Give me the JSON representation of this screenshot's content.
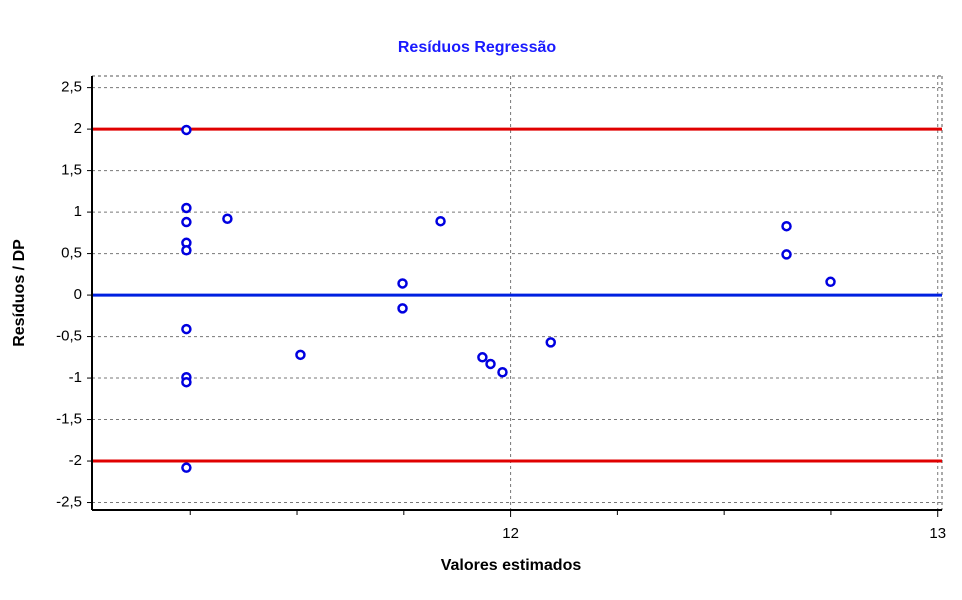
{
  "chart_data": {
    "type": "scatter",
    "title": "Resíduos Regressão",
    "x_label": "Valores estimados",
    "y_label": "Resíduos / DP",
    "x": [
      11.241,
      11.241,
      11.241,
      11.241,
      11.241,
      11.241,
      11.241,
      11.241,
      11.241,
      11.337,
      11.508,
      11.747,
      11.747,
      11.836,
      11.934,
      11.953,
      11.981,
      12.094,
      12.646,
      12.646,
      12.749
    ],
    "values": [
      1.99,
      1.05,
      0.88,
      0.63,
      0.54,
      -0.41,
      -0.99,
      -1.05,
      -2.08,
      0.92,
      -0.72,
      0.14,
      -0.16,
      0.89,
      -0.75,
      -0.83,
      -0.93,
      -0.57,
      0.83,
      0.49,
      0.16
    ],
    "color": "#0000e0",
    "xlim": [
      11.02,
      13.01
    ],
    "xticks": [
      12,
      13
    ],
    "xminorticks": [
      11.25,
      11.5,
      11.75,
      12.25,
      12.5,
      12.75
    ],
    "ylim": [
      -2.59,
      2.64
    ],
    "yticks": [
      {
        "value": -2.5,
        "label": "-2,5"
      },
      -2,
      {
        "value": -1.5,
        "label": "-1,5"
      },
      -1,
      {
        "value": -0.5,
        "label": "-0,5"
      },
      0,
      {
        "value": 0.5,
        "label": "0,5"
      },
      1,
      {
        "value": 1.5,
        "label": "1,5"
      },
      2,
      {
        "value": 2.5,
        "label": "2,5"
      }
    ],
    "grid": true,
    "hlines": [
      {
        "value": 2,
        "color": "#e00000"
      },
      {
        "value": 0,
        "color": "#0020e0"
      },
      {
        "value": -2,
        "color": "#e00000"
      }
    ]
  }
}
